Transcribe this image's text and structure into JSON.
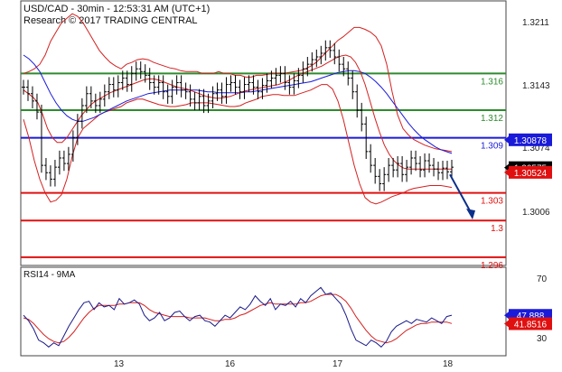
{
  "chart_data": [
    {
      "type": "line",
      "title": "USD/CAD - 30min - 12:53:31 AM (UTC+1)",
      "subtitle": "Research © 2017 TRADING CENTRAL",
      "ylim": [
        1.2955,
        1.3235
      ],
      "yticks": [
        "1.3211",
        "1.3143",
        "1.3074",
        "1.3006"
      ],
      "yticks_values": [
        1.3211,
        1.3143,
        1.3074,
        1.3006
      ],
      "xticks": [
        "13",
        "16",
        "17",
        "18"
      ],
      "xticks_index": [
        24,
        52,
        78,
        104
      ],
      "n_bars": 106,
      "levels": [
        {
          "label": "1.316",
          "value": 1.316,
          "color": "#2e8b2e"
        },
        {
          "label": "1.312",
          "value": 1.312,
          "color": "#2e8b2e"
        },
        {
          "label": "1.309",
          "value": 1.309,
          "color": "#1a1ad9"
        },
        {
          "label": "1.303",
          "value": 1.303,
          "color": "#e01010"
        },
        {
          "label": "1.3",
          "value": 1.3,
          "color": "#e01010"
        },
        {
          "label": "1.296",
          "value": 1.296,
          "color": "#e01010"
        }
      ],
      "price_tags": [
        {
          "label": "1.30878",
          "value": 1.30878,
          "bg": "#1a1ad9",
          "color": "#ffffff"
        },
        {
          "label": "1.30575",
          "value": 1.30575,
          "bg": "#000000",
          "color": "#ffffff"
        },
        {
          "label": "1.30524",
          "value": 1.30524,
          "bg": "#e01010",
          "color": "#ffffff"
        }
      ],
      "close": [
        1.3145,
        1.3138,
        1.313,
        1.3118,
        1.306,
        1.3052,
        1.3045,
        1.3058,
        1.3068,
        1.3062,
        1.3072,
        1.309,
        1.3108,
        1.3125,
        1.3138,
        1.313,
        1.3125,
        1.3132,
        1.314,
        1.3148,
        1.3142,
        1.315,
        1.3155,
        1.3148,
        1.316,
        1.3165,
        1.3162,
        1.3158,
        1.315,
        1.3145,
        1.315,
        1.314,
        1.3135,
        1.3145,
        1.315,
        1.3142,
        1.314,
        1.3132,
        1.3128,
        1.3135,
        1.3125,
        1.313,
        1.3138,
        1.3142,
        1.3135,
        1.3148,
        1.315,
        1.3145,
        1.314,
        1.3148,
        1.315,
        1.3145,
        1.314,
        1.3147,
        1.3152,
        1.3155,
        1.3158,
        1.316,
        1.315,
        1.3145,
        1.3152,
        1.3158,
        1.3165,
        1.317,
        1.3175,
        1.3178,
        1.3182,
        1.3188,
        1.3185,
        1.3178,
        1.317,
        1.3165,
        1.3155,
        1.314,
        1.312,
        1.3105,
        1.3075,
        1.306,
        1.3048,
        1.304,
        1.305,
        1.306,
        1.3055,
        1.3062,
        1.305,
        1.3058,
        1.3068,
        1.3062,
        1.3055,
        1.3065,
        1.306,
        1.3056,
        1.3052,
        1.3057,
        1.3053,
        1.3058
      ],
      "upper_band": [
        1.316,
        1.3162,
        1.3165,
        1.317,
        1.318,
        1.3195,
        1.3205,
        1.3215,
        1.322,
        1.3225,
        1.3222,
        1.3215,
        1.3205,
        1.3195,
        1.3185,
        1.3178,
        1.3172,
        1.3168,
        1.3165,
        1.317,
        1.3172,
        1.3175,
        1.3176,
        1.3175,
        1.3172,
        1.317,
        1.3168,
        1.3166,
        1.3165,
        1.3163,
        1.3162,
        1.3162,
        1.3162,
        1.316,
        1.316,
        1.316,
        1.3162,
        1.316,
        1.316,
        1.3158,
        1.3158,
        1.3156,
        1.3156,
        1.3158,
        1.3158,
        1.3159,
        1.316,
        1.316,
        1.316,
        1.3161,
        1.3162,
        1.3163,
        1.3165,
        1.3168,
        1.3172,
        1.3178,
        1.3184,
        1.319,
        1.3196,
        1.32,
        1.3205,
        1.321,
        1.321,
        1.3208,
        1.3205,
        1.32,
        1.319,
        1.317,
        1.314,
        1.3115,
        1.31,
        1.3093,
        1.3088,
        1.3085,
        1.3082,
        1.308,
        1.3078,
        1.3077,
        1.3076,
        1.3075
      ],
      "lower_band": [
        1.311,
        1.309,
        1.3065,
        1.3045,
        1.303,
        1.302,
        1.3022,
        1.3028,
        1.3045,
        1.307,
        1.309,
        1.31,
        1.3105,
        1.311,
        1.3115,
        1.3118,
        1.312,
        1.3122,
        1.3124,
        1.3128,
        1.313,
        1.3132,
        1.3132,
        1.313,
        1.3128,
        1.3126,
        1.3125,
        1.3124,
        1.3124,
        1.3125,
        1.3126,
        1.3128,
        1.3128,
        1.3128,
        1.3128,
        1.3127,
        1.3126,
        1.3125,
        1.3124,
        1.3124,
        1.3125,
        1.3128,
        1.313,
        1.3132,
        1.3135,
        1.3136,
        1.3137,
        1.3137,
        1.3136,
        1.3136,
        1.3136,
        1.3138,
        1.314,
        1.3142,
        1.3145,
        1.3148,
        1.3148,
        1.3143,
        1.313,
        1.311,
        1.3085,
        1.306,
        1.304,
        1.3025,
        1.302,
        1.3018,
        1.302,
        1.3023,
        1.3026,
        1.3028,
        1.303,
        1.3033,
        1.3035,
        1.3036,
        1.3037,
        1.3038,
        1.3038,
        1.3038,
        1.3037,
        1.3036
      ],
      "ma_fast": [
        1.3142,
        1.3138,
        1.3134,
        1.3128,
        1.3115,
        1.31,
        1.309,
        1.3085,
        1.3085,
        1.309,
        1.3098,
        1.3106,
        1.3114,
        1.312,
        1.3126,
        1.313,
        1.3133,
        1.3136,
        1.3139,
        1.3141,
        1.3143,
        1.3145,
        1.3147,
        1.3149,
        1.3151,
        1.3153,
        1.3154,
        1.3154,
        1.3153,
        1.3151,
        1.3149,
        1.3147,
        1.3145,
        1.3144,
        1.3143,
        1.3141,
        1.3139,
        1.3137,
        1.3135,
        1.3134,
        1.3133,
        1.3133,
        1.3134,
        1.3135,
        1.3137,
        1.3139,
        1.3141,
        1.3142,
        1.3143,
        1.3144,
        1.3145,
        1.3146,
        1.3147,
        1.3148,
        1.315,
        1.3152,
        1.3155,
        1.3158,
        1.316,
        1.3162,
        1.3164,
        1.3166,
        1.3168,
        1.3171,
        1.3174,
        1.3177,
        1.3179,
        1.318,
        1.3178,
        1.3172,
        1.3162,
        1.3148,
        1.313,
        1.3112,
        1.3096,
        1.3082,
        1.3072,
        1.3065,
        1.306,
        1.3057,
        1.3056,
        1.3056,
        1.3056,
        1.3056,
        1.3056,
        1.3056,
        1.3056,
        1.3056,
        1.3056,
        1.3056
      ],
      "ma_slow": [
        1.318,
        1.3176,
        1.317,
        1.3162,
        1.315,
        1.3138,
        1.3128,
        1.312,
        1.3114,
        1.311,
        1.3108,
        1.3108,
        1.311,
        1.3112,
        1.3115,
        1.3118,
        1.3121,
        1.3124,
        1.3127,
        1.313,
        1.3132,
        1.3134,
        1.3136,
        1.3138,
        1.3139,
        1.314,
        1.3141,
        1.3142,
        1.3142,
        1.3142,
        1.3142,
        1.3142,
        1.3142,
        1.3141,
        1.314,
        1.314,
        1.3139,
        1.3139,
        1.3139,
        1.3139,
        1.3139,
        1.314,
        1.314,
        1.3141,
        1.3142,
        1.3143,
        1.3144,
        1.3145,
        1.3146,
        1.3147,
        1.3148,
        1.3149,
        1.315,
        1.3151,
        1.3153,
        1.3155,
        1.3157,
        1.3159,
        1.3161,
        1.3162,
        1.3163,
        1.3163,
        1.3162,
        1.316,
        1.3156,
        1.3151,
        1.3145,
        1.3138,
        1.313,
        1.3122,
        1.3114,
        1.3106,
        1.3099,
        1.3093,
        1.3088,
        1.3084,
        1.308,
        1.3077,
        1.3075,
        1.3073
      ],
      "forecast": {
        "from": 1.305,
        "to": 1.3005,
        "color": "#0b2f8a"
      }
    },
    {
      "type": "line",
      "title": "RSI14 - 9MA",
      "ylim": [
        20,
        80
      ],
      "yticks": [
        "70",
        "30"
      ],
      "yticks_values": [
        70,
        30
      ],
      "price_tags": [
        {
          "label": "47.888",
          "value": 47.888,
          "bg": "#1a1ad9",
          "color": "#ffffff"
        },
        {
          "label": "41.8516",
          "value": 41.8516,
          "bg": "#e01010",
          "color": "#ffffff"
        }
      ],
      "rsi": [
        48,
        44,
        38,
        30,
        28,
        25,
        28,
        26,
        33,
        40,
        46,
        52,
        57,
        58,
        52,
        57,
        54,
        55,
        52,
        60,
        56,
        57,
        59,
        56,
        48,
        44,
        46,
        50,
        44,
        46,
        50,
        51,
        47,
        44,
        47,
        48,
        44,
        43,
        40,
        44,
        48,
        46,
        50,
        54,
        52,
        56,
        62,
        58,
        55,
        60,
        52,
        56,
        55,
        58,
        54,
        60,
        57,
        62,
        65,
        68,
        63,
        64,
        60,
        56,
        48,
        38,
        30,
        28,
        26,
        30,
        28,
        25,
        29,
        36,
        40,
        42,
        44,
        42,
        45,
        44,
        43,
        46,
        44,
        42,
        47,
        48
      ],
      "rsi_ma": [
        46,
        45,
        42,
        38,
        34,
        31,
        29,
        28,
        29,
        32,
        36,
        41,
        46,
        50,
        53,
        55,
        55,
        55,
        55,
        56,
        56,
        57,
        57,
        57,
        55,
        52,
        50,
        49,
        48,
        47,
        47,
        47,
        47,
        46,
        46,
        46,
        46,
        45,
        44,
        44,
        45,
        45,
        46,
        48,
        49,
        51,
        53,
        55,
        56,
        57,
        56,
        56,
        56,
        56,
        56,
        57,
        57,
        58,
        60,
        62,
        63,
        63,
        63,
        61,
        58,
        53,
        47,
        42,
        37,
        33,
        30,
        29,
        28,
        29,
        31,
        34,
        37,
        39,
        41,
        42,
        42,
        43,
        43,
        43,
        43,
        42
      ]
    }
  ]
}
